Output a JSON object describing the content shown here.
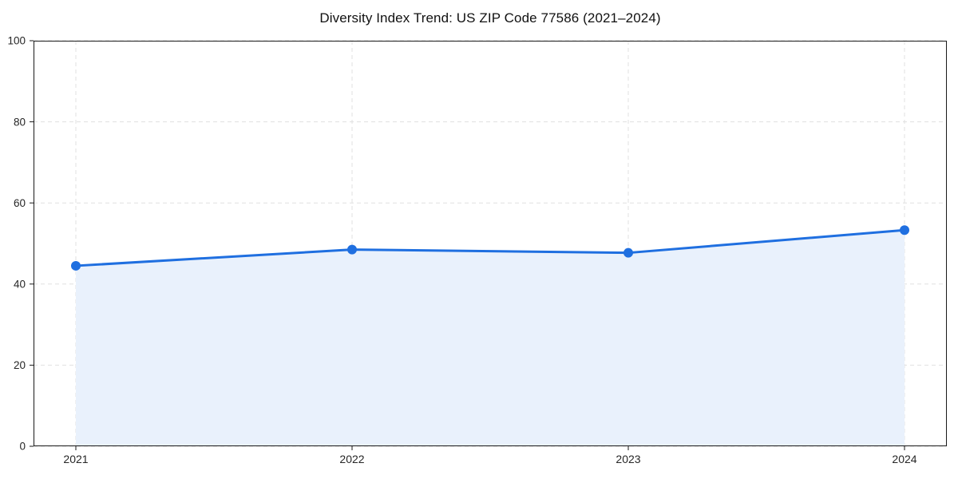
{
  "chart_data": {
    "type": "area",
    "title": "Diversity Index Trend: US ZIP Code 77586 (2021–2024)",
    "x": [
      "2021",
      "2022",
      "2023",
      "2024"
    ],
    "values": [
      44.5,
      48.5,
      47.7,
      53.3
    ],
    "xlabel": "",
    "ylabel": "",
    "ylim": [
      0,
      100
    ],
    "yticks": [
      0,
      20,
      40,
      60,
      80,
      100
    ],
    "grid": "dashed-both-axes",
    "legend": "none",
    "marker": "circle",
    "colors": {
      "line": "#1f6fe0",
      "marker": "#1f6fe0",
      "fill": "#e9f1fc",
      "grid": "#e0e0e0",
      "spine": "#1a1a1a",
      "tick_text": "#262626",
      "background": "#ffffff"
    }
  }
}
